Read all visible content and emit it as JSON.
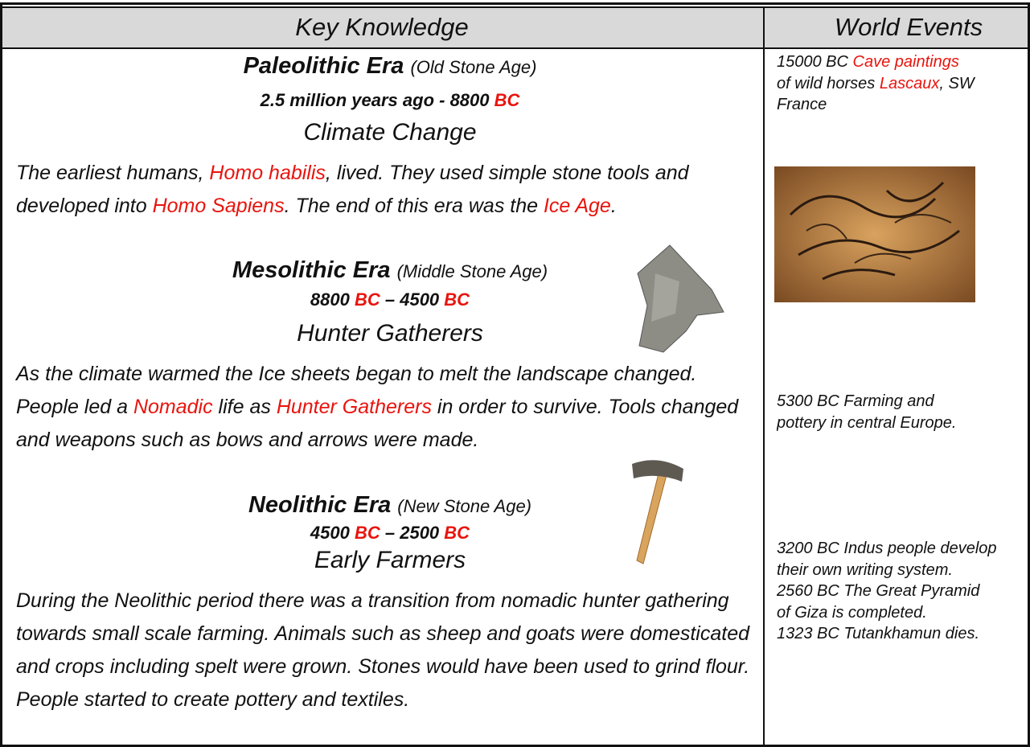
{
  "header": {
    "left": "Key Knowledge",
    "right": "World Events"
  },
  "sections": [
    {
      "title": [
        "Paleolithic Era ",
        "(Old Stone Age)"
      ],
      "dates": [
        "2.5 million years ago - 8800 ",
        {
          "text": "BC",
          "color": "#e8140e"
        }
      ],
      "subtitle": "Climate Change",
      "body": [
        "The earliest humans, ",
        {
          "text": "Homo habilis",
          "color": "#e8140e"
        },
        ", lived. They used simple stone tools and developed into ",
        {
          "text": "Homo Sapiens",
          "color": "#e8140e"
        },
        ". The end of this era was the ",
        {
          "text": "Ice Age",
          "color": "#e8140e"
        },
        "."
      ]
    },
    {
      "title": [
        "Mesolithic Era ",
        "(Middle Stone Age)"
      ],
      "dates": [
        "8800 ",
        {
          "text": "BC",
          "color": "#e8140e"
        },
        " – 4500 ",
        {
          "text": "BC",
          "color": "#e8140e"
        }
      ],
      "subtitle": "Hunter Gatherers",
      "body": [
        "As the climate warmed the Ice sheets began to melt the landscape changed. People led a ",
        {
          "text": "Nomadic",
          "color": "#e8140e"
        },
        " life as ",
        {
          "text": "Hunter Gatherers",
          "color": "#e8140e"
        },
        " in order to survive. Tools changed and weapons such as bows and arrows were made."
      ]
    },
    {
      "title": [
        "Neolithic Era ",
        "(New Stone Age)"
      ],
      "dates": [
        "4500 ",
        {
          "text": "BC",
          "color": "#e8140e"
        },
        " – 2500 ",
        {
          "text": "BC",
          "color": "#e8140e"
        }
      ],
      "subtitle": "Early Farmers",
      "body": [
        "During the Neolithic period there was a transition from nomadic hunter gathering towards small scale farming. Animals such as sheep and goats were domesticated and crops including spelt were grown. Stones would have been used to grind flour. People started to create pottery and textiles."
      ]
    }
  ],
  "events": [
    [
      [
        "15000 BC ",
        {
          "text": "Cave paintings",
          "color": "#e8140e"
        }
      ],
      [
        "of wild horses ",
        {
          "text": "Lascaux",
          "color": "#e8140e"
        },
        ", SW"
      ],
      [
        "France"
      ]
    ],
    [
      [
        "5300 BC Farming and"
      ],
      [
        "pottery in central Europe."
      ]
    ],
    [
      [
        "3200 BC Indus people develop"
      ],
      [
        "their own writing system."
      ],
      [
        "2560 BC The Great Pyramid"
      ],
      [
        "of Giza is completed."
      ],
      [
        "1323 BC Tutankhamun dies."
      ]
    ]
  ]
}
